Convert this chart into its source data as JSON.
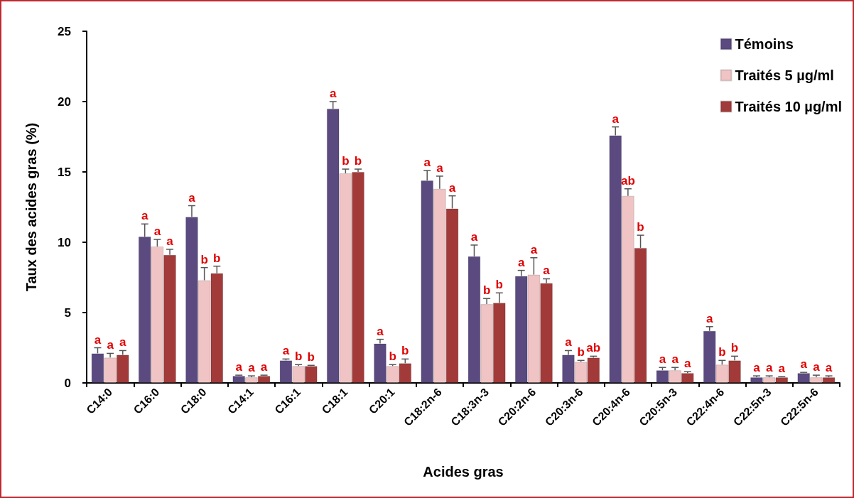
{
  "chart_data": {
    "type": "bar",
    "xlabel": "Acides gras",
    "ylabel": "Taux des acides gras (%)",
    "categories": [
      "C14:0",
      "C16:0",
      "C18:0",
      "C14:1",
      "C16:1",
      "C18:1",
      "C20:1",
      "C18:2n-6",
      "C18:3n-3",
      "C20:2n-6",
      "C20:3n-6",
      "C20:4n-6",
      "C20:5n-3",
      "C22:4n-6",
      "C22:5n-3",
      "C22:5n-6"
    ],
    "series": [
      {
        "name": "Témoins",
        "color": "#5b4a80",
        "values": [
          2.1,
          10.4,
          11.8,
          0.5,
          1.6,
          19.5,
          2.8,
          14.4,
          9.0,
          7.6,
          2.0,
          17.6,
          0.9,
          3.7,
          0.4,
          0.7
        ],
        "errors": [
          [
            2.1,
            2.5
          ],
          [
            10.4,
            11.3
          ],
          [
            11.8,
            12.6
          ],
          [
            0.5,
            0.55
          ],
          [
            1.6,
            1.7
          ],
          [
            19.5,
            20.0
          ],
          [
            2.8,
            3.1
          ],
          [
            14.4,
            15.1
          ],
          [
            9.0,
            9.8
          ],
          [
            7.6,
            8.0
          ],
          [
            2.0,
            2.3
          ],
          [
            17.6,
            18.2
          ],
          [
            0.9,
            1.1
          ],
          [
            3.7,
            4.0
          ],
          [
            0.4,
            0.5
          ],
          [
            0.7,
            0.75
          ]
        ],
        "value_labels": [
          "a",
          "a",
          "a",
          "a",
          "a",
          "a",
          "a",
          "a",
          "a",
          "a",
          "a",
          "a",
          "a",
          "a",
          "a",
          "a"
        ]
      },
      {
        "name": "Traités 5 µg/ml",
        "color": "#f0c4c4",
        "values": [
          1.8,
          9.7,
          7.3,
          0.4,
          1.2,
          14.9,
          1.2,
          13.8,
          5.6,
          7.7,
          1.5,
          13.3,
          0.9,
          1.3,
          0.4,
          0.4
        ],
        "errors": [
          [
            1.8,
            2.1
          ],
          [
            9.7,
            10.2
          ],
          [
            7.3,
            8.2
          ],
          [
            0.4,
            0.5
          ],
          [
            1.2,
            1.3
          ],
          [
            14.9,
            15.2
          ],
          [
            1.2,
            1.3
          ],
          [
            13.8,
            14.7
          ],
          [
            5.6,
            6.0
          ],
          [
            7.7,
            8.9
          ],
          [
            1.5,
            1.6
          ],
          [
            13.3,
            13.8
          ],
          [
            0.9,
            1.1
          ],
          [
            1.3,
            1.6
          ],
          [
            0.4,
            0.5
          ],
          [
            0.4,
            0.55
          ]
        ],
        "value_labels": [
          "a",
          "a",
          "b",
          "a",
          "b",
          "b",
          "b",
          "a",
          "b",
          "a",
          "b",
          "ab",
          "a",
          "b",
          "a",
          "a"
        ]
      },
      {
        "name": "Traités 10 µg/ml",
        "color": "#a33a3a",
        "values": [
          2.0,
          9.1,
          7.8,
          0.5,
          1.2,
          15.0,
          1.4,
          12.4,
          5.7,
          7.1,
          1.8,
          9.6,
          0.7,
          1.6,
          0.4,
          0.4
        ],
        "errors": [
          [
            2.0,
            2.3
          ],
          [
            9.1,
            9.5
          ],
          [
            7.8,
            8.3
          ],
          [
            0.5,
            0.55
          ],
          [
            1.2,
            1.25
          ],
          [
            15.0,
            15.2
          ],
          [
            1.4,
            1.7
          ],
          [
            12.4,
            13.3
          ],
          [
            5.7,
            6.4
          ],
          [
            7.1,
            7.4
          ],
          [
            1.8,
            1.9
          ],
          [
            9.6,
            10.5
          ],
          [
            0.7,
            0.8
          ],
          [
            1.6,
            1.9
          ],
          [
            0.4,
            0.45
          ],
          [
            0.4,
            0.5
          ]
        ],
        "value_labels": [
          "a",
          "a",
          "b",
          "a",
          "b",
          "b",
          "b",
          "a",
          "b",
          "a",
          "ab",
          "b",
          "a",
          "b",
          "a",
          "a"
        ]
      }
    ],
    "ylim": [
      0,
      25
    ],
    "yticks": [
      0,
      5,
      10,
      15,
      20,
      25
    ],
    "grid": false,
    "legend": "top right"
  }
}
